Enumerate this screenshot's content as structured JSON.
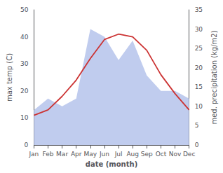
{
  "chart_data": {
    "type": "line",
    "categories": [
      "Jan",
      "Feb",
      "Mar",
      "Apr",
      "May",
      "Jun",
      "Jul",
      "Aug",
      "Sep",
      "Oct",
      "Nov",
      "Dec"
    ],
    "xlabel": "date (month)",
    "ylabel": "max temp (C)",
    "y2label": "med. precipitation (kg/m2)",
    "series": [
      {
        "type": "area",
        "axis": "y2",
        "color": "#c0ccee",
        "values": [
          9,
          12,
          10,
          12,
          30,
          28,
          22,
          27,
          18,
          14,
          14,
          12
        ]
      },
      {
        "type": "line",
        "color": "#cc3333",
        "values": [
          11,
          13,
          18,
          24,
          32,
          39,
          41,
          40,
          35,
          26,
          19,
          13
        ]
      }
    ],
    "ylim": [
      0,
      50
    ],
    "yticks": [
      0,
      10,
      20,
      30,
      40,
      50
    ],
    "y2lim": [
      0,
      35
    ],
    "y2ticks": [
      0,
      5,
      10,
      15,
      20,
      25,
      30,
      35
    ],
    "grid": false
  }
}
